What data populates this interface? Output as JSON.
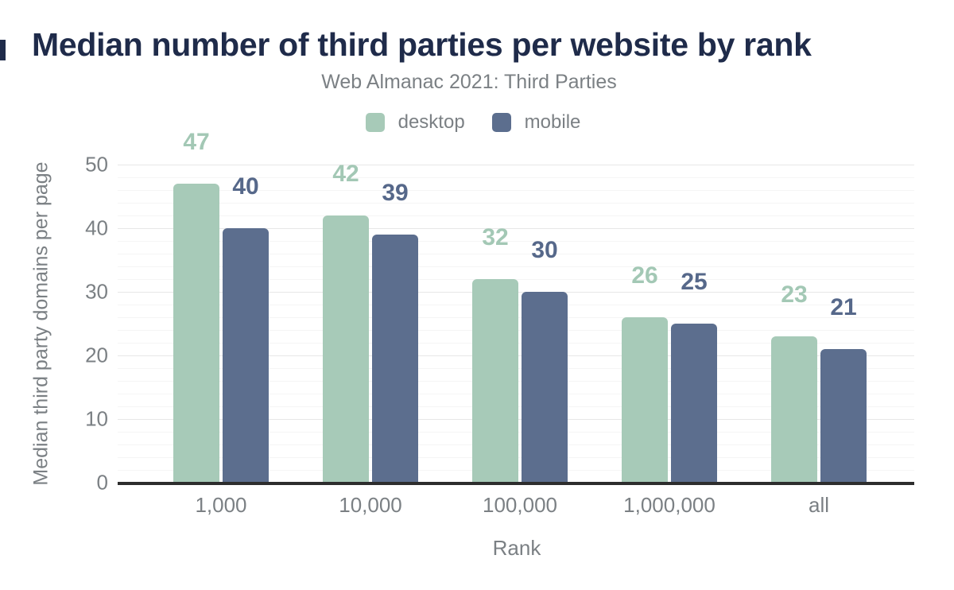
{
  "header": {
    "title": "Median number of third parties per website by rank",
    "subtitle": "Web Almanac 2021: Third Parties"
  },
  "chart_data": {
    "type": "bar",
    "title": "Median number of third parties per website by rank",
    "subtitle": "Web Almanac 2021: Third Parties",
    "categories": [
      "1,000",
      "10,000",
      "100,000",
      "1,000,000",
      "all"
    ],
    "series": [
      {
        "name": "desktop",
        "color": "#a7cab8",
        "label_color": "#a3c8b5",
        "values": [
          47,
          42,
          32,
          26,
          23
        ]
      },
      {
        "name": "mobile",
        "color": "#5c6e8e",
        "label_color": "#56688a",
        "values": [
          40,
          39,
          30,
          25,
          21
        ]
      }
    ],
    "xlabel": "Rank",
    "ylabel": "Median third party domains per page",
    "ylim": [
      0,
      50
    ],
    "yticks": [
      0,
      10,
      20,
      30,
      40,
      50
    ],
    "minor_grid_step": 2,
    "grid": true,
    "legend_position": "top"
  },
  "colors": {
    "title": "#1f2b4a",
    "axis_text": "#7b8084",
    "baseline": "#2d2d2d",
    "major_grid": "#e7e7e7",
    "minor_grid": "#f5f5f5",
    "background": "#ffffff"
  }
}
